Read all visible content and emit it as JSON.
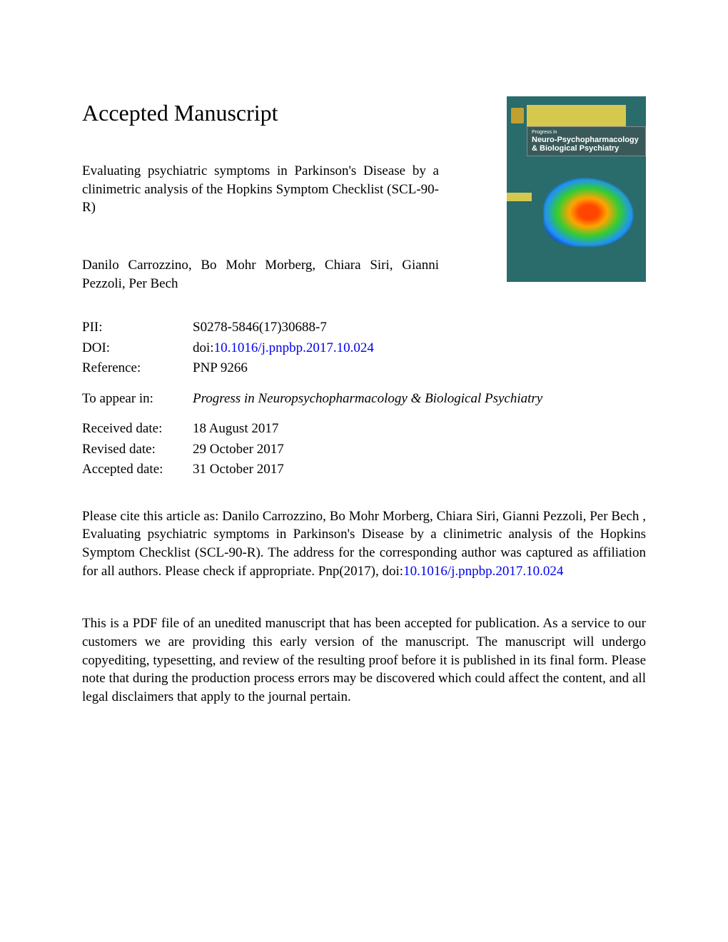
{
  "heading": "Accepted Manuscript",
  "article_title": "Evaluating psychiatric symptoms in Parkinson's Disease by a clinimetric analysis of the Hopkins Symptom Checklist (SCL-90-R)",
  "authors": "Danilo Carrozzino, Bo Mohr Morberg, Chiara Siri, Gianni Pezzoli, Per Bech",
  "journal_cover": {
    "title_line1": "Progress in",
    "title_line2": "Neuro-Psychopharmacology",
    "title_line3": "& Biological Psychiatry",
    "background_color": "#2a6b6b",
    "accent_color": "#d4c94e"
  },
  "metadata": {
    "pii_label": "PII:",
    "pii_value": "S0278-5846(17)30688-7",
    "doi_label": "DOI:",
    "doi_prefix": "doi:",
    "doi_link": "10.1016/j.pnpbp.2017.10.024",
    "reference_label": "Reference:",
    "reference_value": "PNP 9266",
    "to_appear_label": "To appear in:",
    "to_appear_value": "Progress in Neuropsychopharmacology & Biological Psychiatry",
    "received_label": "Received date:",
    "received_value": "18 August 2017",
    "revised_label": "Revised date:",
    "revised_value": "29 October 2017",
    "accepted_label": "Accepted date:",
    "accepted_value": "31 October 2017"
  },
  "citation": {
    "prefix": "Please cite this article as: Danilo Carrozzino, Bo Mohr Morberg, Chiara Siri, Gianni Pezzoli, Per Bech , Evaluating psychiatric symptoms in Parkinson's Disease by a clinimetric analysis of the Hopkins Symptom Checklist (SCL-90-R). The address for the corresponding author was captured as affiliation for all authors. Please check if appropriate. Pnp(2017), doi:",
    "doi_link": "10.1016/j.pnpbp.2017.10.024"
  },
  "disclaimer": "This is a PDF file of an unedited manuscript that has been accepted for publication. As a service to our customers we are providing this early version of the manuscript. The manuscript will undergo copyediting, typesetting, and review of the resulting proof before it is published in its final form. Please note that during the production process errors may be discovered which could affect the content, and all legal disclaimers that apply to the journal pertain.",
  "colors": {
    "text": "#000000",
    "link": "#0000ee",
    "background": "#ffffff"
  }
}
